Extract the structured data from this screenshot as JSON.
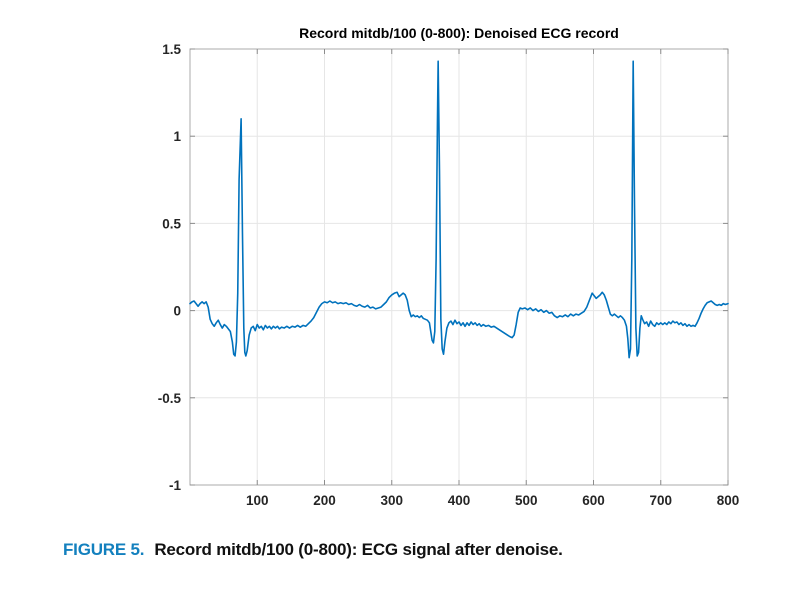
{
  "figure": {
    "title": "Record mitdb/100 (0-800): Denoised ECG record",
    "caption_label": "FIGURE 5.",
    "caption_text": "Record mitdb/100 (0-800): ECG signal after denoise."
  },
  "colors": {
    "line": "#0072BD",
    "grid": "#e6e6e6",
    "axis_box": "#ababab",
    "tick": "#8c8c8c",
    "tick_label": "#252525",
    "title": "#000000",
    "caption_accent": "#1380BE",
    "caption_text": "#111111"
  },
  "chart_data": {
    "type": "line",
    "title": "Record mitdb/100 (0-800): Denoised ECG record",
    "xlabel": "",
    "ylabel": "",
    "xlim": [
      0,
      800
    ],
    "ylim": [
      -1,
      1.5
    ],
    "xticks": [
      100,
      200,
      300,
      400,
      500,
      600,
      700,
      800
    ],
    "xtick_labels": [
      "100",
      "200",
      "300",
      "400",
      "500",
      "600",
      "700",
      "800"
    ],
    "yticks": [
      -1,
      -0.5,
      0,
      0.5,
      1,
      1.5
    ],
    "ytick_labels": [
      "-1",
      "-0.5",
      "0",
      "0.5",
      "1",
      "1.5"
    ],
    "grid": true,
    "legend": null,
    "series": [
      {
        "name": "Denoised ECG",
        "color": "#0072BD",
        "r_peaks_x": [
          76,
          369,
          659
        ],
        "r_peaks_y": [
          1.1,
          1.43,
          1.43
        ],
        "points": [
          [
            0,
            0.04
          ],
          [
            3,
            0.05
          ],
          [
            6,
            0.055
          ],
          [
            9,
            0.04
          ],
          [
            12,
            0.025
          ],
          [
            15,
            0.04
          ],
          [
            18,
            0.05
          ],
          [
            21,
            0.04
          ],
          [
            24,
            0.05
          ],
          [
            27,
            0.02
          ],
          [
            30,
            -0.05
          ],
          [
            33,
            -0.075
          ],
          [
            36,
            -0.09
          ],
          [
            39,
            -0.07
          ],
          [
            42,
            -0.055
          ],
          [
            45,
            -0.08
          ],
          [
            48,
            -0.1
          ],
          [
            51,
            -0.08
          ],
          [
            54,
            -0.09
          ],
          [
            57,
            -0.105
          ],
          [
            60,
            -0.12
          ],
          [
            63,
            -0.18
          ],
          [
            65,
            -0.25
          ],
          [
            67,
            -0.26
          ],
          [
            69,
            -0.18
          ],
          [
            71,
            0.1
          ],
          [
            73,
            0.75
          ],
          [
            76,
            1.1
          ],
          [
            78,
            0.45
          ],
          [
            80,
            -0.1
          ],
          [
            81.5,
            -0.24
          ],
          [
            83,
            -0.26
          ],
          [
            85,
            -0.23
          ],
          [
            88,
            -0.14
          ],
          [
            91,
            -0.1
          ],
          [
            94,
            -0.09
          ],
          [
            97,
            -0.115
          ],
          [
            100,
            -0.08
          ],
          [
            103,
            -0.1
          ],
          [
            106,
            -0.09
          ],
          [
            109,
            -0.11
          ],
          [
            112,
            -0.085
          ],
          [
            115,
            -0.1
          ],
          [
            118,
            -0.09
          ],
          [
            121,
            -0.105
          ],
          [
            124,
            -0.09
          ],
          [
            127,
            -0.1
          ],
          [
            130,
            -0.09
          ],
          [
            133,
            -0.105
          ],
          [
            136,
            -0.095
          ],
          [
            140,
            -0.1
          ],
          [
            144,
            -0.09
          ],
          [
            148,
            -0.1
          ],
          [
            152,
            -0.09
          ],
          [
            156,
            -0.095
          ],
          [
            160,
            -0.085
          ],
          [
            164,
            -0.095
          ],
          [
            168,
            -0.085
          ],
          [
            172,
            -0.09
          ],
          [
            176,
            -0.075
          ],
          [
            180,
            -0.06
          ],
          [
            184,
            -0.04
          ],
          [
            188,
            -0.01
          ],
          [
            192,
            0.02
          ],
          [
            196,
            0.04
          ],
          [
            200,
            0.05
          ],
          [
            204,
            0.045
          ],
          [
            208,
            0.055
          ],
          [
            212,
            0.045
          ],
          [
            216,
            0.05
          ],
          [
            220,
            0.04
          ],
          [
            224,
            0.045
          ],
          [
            228,
            0.04
          ],
          [
            232,
            0.045
          ],
          [
            236,
            0.035
          ],
          [
            240,
            0.04
          ],
          [
            244,
            0.03
          ],
          [
            248,
            0.025
          ],
          [
            252,
            0.035
          ],
          [
            256,
            0.025
          ],
          [
            260,
            0.02
          ],
          [
            264,
            0.03
          ],
          [
            268,
            0.015
          ],
          [
            272,
            0.02
          ],
          [
            276,
            0.01
          ],
          [
            280,
            0.015
          ],
          [
            284,
            0.02
          ],
          [
            288,
            0.035
          ],
          [
            292,
            0.05
          ],
          [
            296,
            0.075
          ],
          [
            300,
            0.09
          ],
          [
            304,
            0.1
          ],
          [
            308,
            0.105
          ],
          [
            311,
            0.08
          ],
          [
            314,
            0.09
          ],
          [
            317,
            0.1
          ],
          [
            320,
            0.09
          ],
          [
            323,
            0.06
          ],
          [
            326,
            0.0
          ],
          [
            329,
            -0.035
          ],
          [
            332,
            -0.025
          ],
          [
            335,
            -0.035
          ],
          [
            338,
            -0.03
          ],
          [
            341,
            -0.04
          ],
          [
            344,
            -0.03
          ],
          [
            347,
            -0.045
          ],
          [
            350,
            -0.05
          ],
          [
            353,
            -0.055
          ],
          [
            356,
            -0.07
          ],
          [
            358,
            -0.12
          ],
          [
            360,
            -0.17
          ],
          [
            362,
            -0.185
          ],
          [
            364,
            -0.12
          ],
          [
            366,
            0.3
          ],
          [
            368,
            1.1
          ],
          [
            369,
            1.43
          ],
          [
            371,
            0.8
          ],
          [
            373,
            -0.05
          ],
          [
            375,
            -0.22
          ],
          [
            377,
            -0.25
          ],
          [
            379,
            -0.18
          ],
          [
            382,
            -0.1
          ],
          [
            385,
            -0.07
          ],
          [
            388,
            -0.06
          ],
          [
            391,
            -0.08
          ],
          [
            394,
            -0.055
          ],
          [
            397,
            -0.075
          ],
          [
            400,
            -0.065
          ],
          [
            403,
            -0.085
          ],
          [
            406,
            -0.07
          ],
          [
            409,
            -0.09
          ],
          [
            412,
            -0.07
          ],
          [
            415,
            -0.085
          ],
          [
            418,
            -0.065
          ],
          [
            421,
            -0.08
          ],
          [
            424,
            -0.07
          ],
          [
            427,
            -0.085
          ],
          [
            430,
            -0.075
          ],
          [
            433,
            -0.09
          ],
          [
            436,
            -0.08
          ],
          [
            440,
            -0.09
          ],
          [
            444,
            -0.085
          ],
          [
            448,
            -0.095
          ],
          [
            452,
            -0.09
          ],
          [
            456,
            -0.1
          ],
          [
            460,
            -0.11
          ],
          [
            464,
            -0.12
          ],
          [
            468,
            -0.13
          ],
          [
            472,
            -0.14
          ],
          [
            476,
            -0.15
          ],
          [
            479,
            -0.155
          ],
          [
            482,
            -0.14
          ],
          [
            485,
            -0.08
          ],
          [
            488,
            -0.01
          ],
          [
            491,
            0.015
          ],
          [
            494,
            0.01
          ],
          [
            498,
            0.015
          ],
          [
            502,
            0.005
          ],
          [
            506,
            0.015
          ],
          [
            510,
            0.0
          ],
          [
            514,
            0.01
          ],
          [
            518,
            -0.005
          ],
          [
            522,
            0.005
          ],
          [
            526,
            -0.01
          ],
          [
            530,
            0.0
          ],
          [
            534,
            -0.015
          ],
          [
            538,
            -0.01
          ],
          [
            542,
            -0.03
          ],
          [
            546,
            -0.04
          ],
          [
            550,
            -0.03
          ],
          [
            554,
            -0.035
          ],
          [
            558,
            -0.025
          ],
          [
            562,
            -0.035
          ],
          [
            566,
            -0.02
          ],
          [
            570,
            -0.03
          ],
          [
            574,
            -0.02
          ],
          [
            578,
            -0.025
          ],
          [
            582,
            -0.015
          ],
          [
            586,
            -0.005
          ],
          [
            590,
            0.02
          ],
          [
            594,
            0.06
          ],
          [
            598,
            0.1
          ],
          [
            601,
            0.085
          ],
          [
            604,
            0.07
          ],
          [
            607,
            0.08
          ],
          [
            610,
            0.09
          ],
          [
            613,
            0.105
          ],
          [
            616,
            0.09
          ],
          [
            619,
            0.06
          ],
          [
            622,
            0.02
          ],
          [
            625,
            -0.02
          ],
          [
            628,
            -0.03
          ],
          [
            631,
            -0.02
          ],
          [
            634,
            -0.03
          ],
          [
            637,
            -0.04
          ],
          [
            640,
            -0.03
          ],
          [
            643,
            -0.04
          ],
          [
            646,
            -0.055
          ],
          [
            649,
            -0.09
          ],
          [
            651,
            -0.16
          ],
          [
            653,
            -0.27
          ],
          [
            655,
            -0.22
          ],
          [
            657,
            0.3
          ],
          [
            659,
            1.43
          ],
          [
            661,
            0.6
          ],
          [
            663,
            -0.1
          ],
          [
            665,
            -0.26
          ],
          [
            667,
            -0.24
          ],
          [
            669,
            -0.1
          ],
          [
            671,
            -0.03
          ],
          [
            673,
            -0.05
          ],
          [
            676,
            -0.075
          ],
          [
            679,
            -0.065
          ],
          [
            682,
            -0.09
          ],
          [
            685,
            -0.06
          ],
          [
            688,
            -0.08
          ],
          [
            691,
            -0.09
          ],
          [
            694,
            -0.07
          ],
          [
            697,
            -0.08
          ],
          [
            700,
            -0.07
          ],
          [
            703,
            -0.08
          ],
          [
            706,
            -0.07
          ],
          [
            709,
            -0.08
          ],
          [
            712,
            -0.065
          ],
          [
            715,
            -0.075
          ],
          [
            718,
            -0.06
          ],
          [
            721,
            -0.07
          ],
          [
            724,
            -0.065
          ],
          [
            727,
            -0.08
          ],
          [
            730,
            -0.07
          ],
          [
            733,
            -0.085
          ],
          [
            736,
            -0.075
          ],
          [
            739,
            -0.09
          ],
          [
            742,
            -0.08
          ],
          [
            745,
            -0.09
          ],
          [
            748,
            -0.085
          ],
          [
            751,
            -0.09
          ],
          [
            754,
            -0.07
          ],
          [
            757,
            -0.045
          ],
          [
            760,
            -0.015
          ],
          [
            763,
            0.01
          ],
          [
            766,
            0.03
          ],
          [
            769,
            0.045
          ],
          [
            772,
            0.05
          ],
          [
            775,
            0.055
          ],
          [
            778,
            0.045
          ],
          [
            781,
            0.035
          ],
          [
            784,
            0.03
          ],
          [
            787,
            0.035
          ],
          [
            790,
            0.03
          ],
          [
            793,
            0.04
          ],
          [
            796,
            0.035
          ],
          [
            800,
            0.04
          ]
        ]
      }
    ]
  }
}
